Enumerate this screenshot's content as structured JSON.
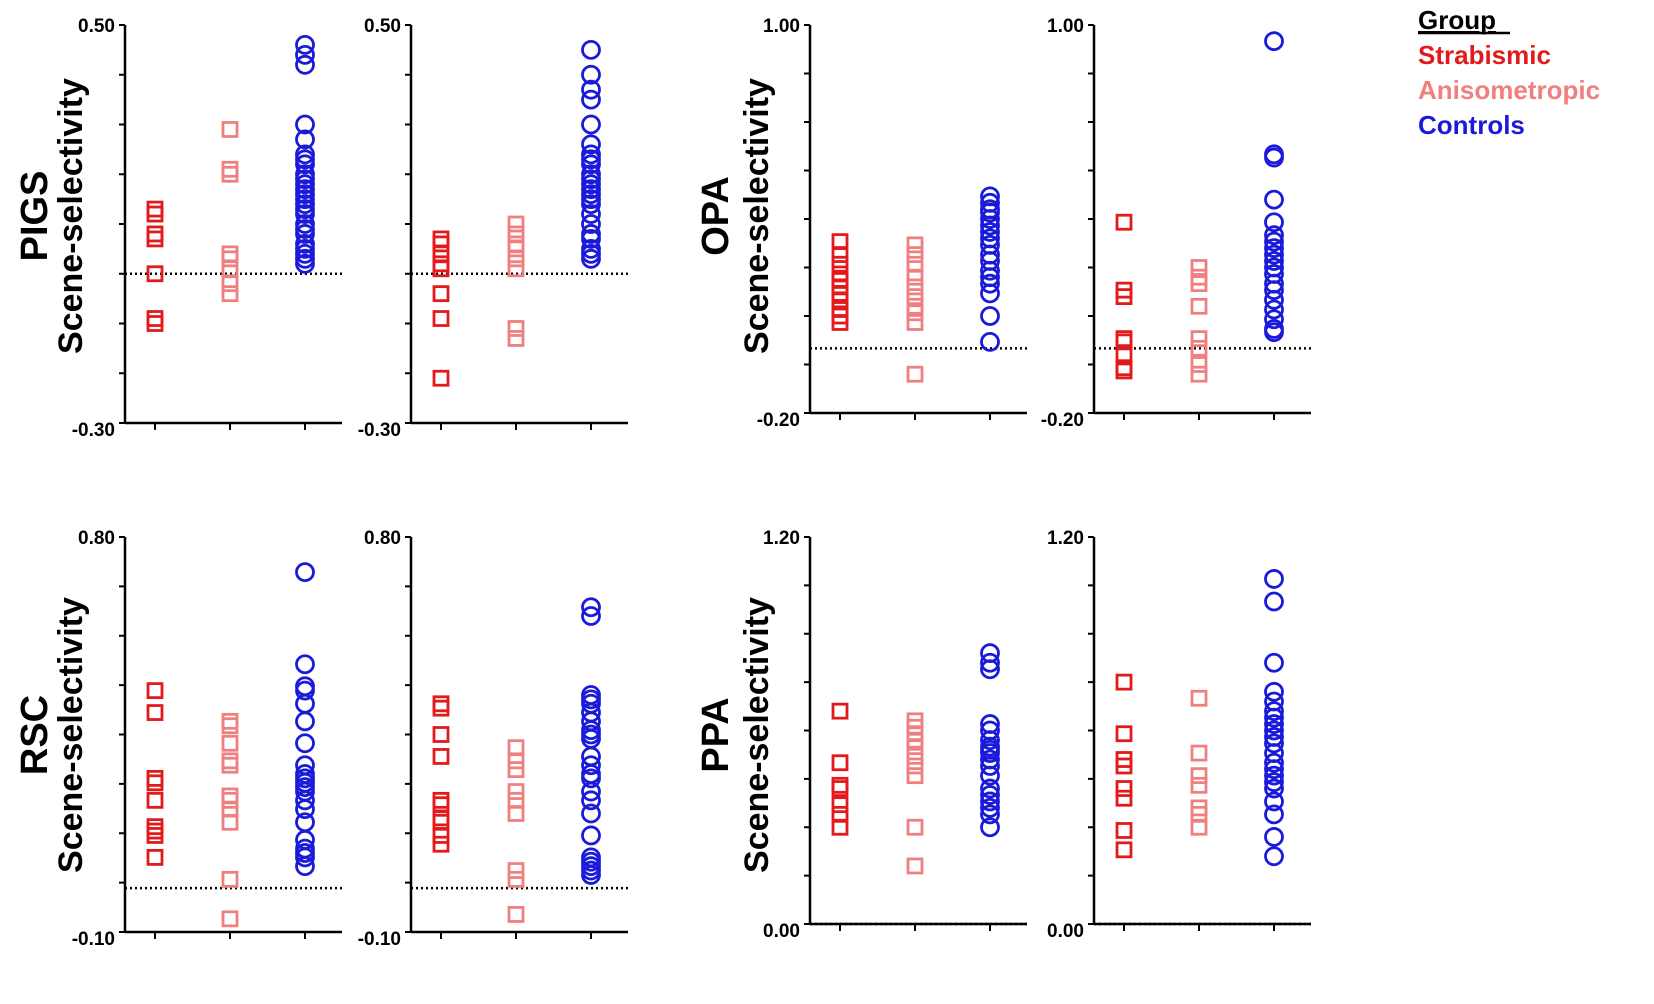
{
  "chart_data": {
    "type": "scatter",
    "groups": [
      "Strabismic",
      "Anisometropic",
      "Controls"
    ],
    "colors": {
      "Strabismic": "#e31a1c",
      "Anisometropic": "#f08080",
      "Controls": "#1a1adb"
    },
    "markers": {
      "Strabismic": "square",
      "Anisometropic": "square",
      "Controls": "circle"
    },
    "legend": {
      "title": "Group",
      "items": [
        "Strabismic",
        "Anisometropic",
        "Controls"
      ],
      "placement": "top-right"
    },
    "ylabel": "Scene-selectivity",
    "regions": [
      {
        "name": "PIGS",
        "ylim": [
          -0.3,
          0.5
        ],
        "tick_labels": [
          "-0.30",
          "0.50"
        ],
        "baseline": 0.0,
        "panels": [
          {
            "Strabismic": [
              0.13,
              0.12,
              0.08,
              0.07,
              0.0,
              -0.09,
              -0.1
            ],
            "Anisometropic": [
              0.29,
              0.21,
              0.2,
              0.04,
              0.03,
              0.01,
              -0.02,
              -0.04
            ],
            "Controls": [
              0.46,
              0.44,
              0.42,
              0.3,
              0.27,
              0.24,
              0.23,
              0.22,
              0.2,
              0.19,
              0.18,
              0.17,
              0.16,
              0.15,
              0.14,
              0.13,
              0.12,
              0.1,
              0.09,
              0.08,
              0.06,
              0.05,
              0.04,
              0.03,
              0.02
            ]
          },
          {
            "Strabismic": [
              0.07,
              0.06,
              0.04,
              0.02,
              0.01,
              -0.04,
              -0.09,
              -0.21
            ],
            "Anisometropic": [
              0.1,
              0.08,
              0.06,
              0.05,
              0.03,
              0.01,
              -0.11,
              -0.13
            ],
            "Controls": [
              0.45,
              0.4,
              0.37,
              0.35,
              0.3,
              0.26,
              0.24,
              0.23,
              0.22,
              0.2,
              0.19,
              0.18,
              0.17,
              0.16,
              0.15,
              0.14,
              0.12,
              0.1,
              0.08,
              0.07,
              0.05,
              0.04,
              0.03
            ]
          }
        ]
      },
      {
        "name": "OPA",
        "ylim": [
          -0.2,
          1.0
        ],
        "tick_labels": [
          "-0.20",
          "1.00"
        ],
        "baseline": 0.0,
        "panels": [
          {
            "Strabismic": [
              0.33,
              0.29,
              0.26,
              0.23,
              0.21,
              0.19,
              0.17,
              0.15,
              0.12,
              0.1,
              0.08
            ],
            "Anisometropic": [
              0.32,
              0.29,
              0.26,
              0.22,
              0.19,
              0.16,
              0.13,
              0.11,
              0.08,
              -0.08
            ],
            "Controls": [
              0.47,
              0.45,
              0.43,
              0.42,
              0.4,
              0.38,
              0.36,
              0.34,
              0.32,
              0.29,
              0.27,
              0.24,
              0.22,
              0.2,
              0.17,
              0.1,
              0.02
            ]
          },
          {
            "Strabismic": [
              0.39,
              0.18,
              0.16,
              0.03,
              0.02,
              -0.02,
              -0.06,
              -0.07
            ],
            "Anisometropic": [
              0.25,
              0.22,
              0.2,
              0.13,
              0.03,
              0.0,
              -0.05,
              -0.08
            ],
            "Controls": [
              0.95,
              0.6,
              0.59,
              0.46,
              0.39,
              0.35,
              0.33,
              0.31,
              0.29,
              0.27,
              0.25,
              0.23,
              0.2,
              0.18,
              0.15,
              0.12,
              0.09,
              0.06,
              0.05
            ]
          }
        ]
      },
      {
        "name": "RSC",
        "ylim": [
          -0.1,
          0.8
        ],
        "tick_labels": [
          "-0.10",
          "0.80"
        ],
        "baseline": 0.0,
        "panels": [
          {
            "Strabismic": [
              0.45,
              0.4,
              0.25,
              0.24,
              0.2,
              0.14,
              0.13,
              0.12,
              0.07
            ],
            "Anisometropic": [
              0.38,
              0.37,
              0.33,
              0.29,
              0.28,
              0.21,
              0.2,
              0.18,
              0.15,
              0.02,
              -0.07
            ],
            "Controls": [
              0.72,
              0.51,
              0.46,
              0.45,
              0.42,
              0.38,
              0.33,
              0.28,
              0.26,
              0.25,
              0.24,
              0.23,
              0.22,
              0.2,
              0.18,
              0.15,
              0.11,
              0.09,
              0.08,
              0.07,
              0.05
            ]
          },
          {
            "Strabismic": [
              0.42,
              0.41,
              0.35,
              0.3,
              0.2,
              0.19,
              0.16,
              0.15,
              0.12,
              0.1
            ],
            "Anisometropic": [
              0.32,
              0.29,
              0.27,
              0.22,
              0.2,
              0.17,
              0.04,
              0.02,
              -0.06
            ],
            "Controls": [
              0.64,
              0.62,
              0.44,
              0.43,
              0.42,
              0.4,
              0.38,
              0.36,
              0.35,
              0.34,
              0.3,
              0.28,
              0.26,
              0.25,
              0.22,
              0.2,
              0.17,
              0.12,
              0.07,
              0.06,
              0.05,
              0.04,
              0.03
            ]
          }
        ]
      },
      {
        "name": "PPA",
        "ylim": [
          0.0,
          1.2
        ],
        "tick_labels": [
          "0.00",
          "1.20"
        ],
        "baseline": 0.0,
        "panels": [
          {
            "Strabismic": [
              0.66,
              0.5,
              0.43,
              0.42,
              0.37,
              0.34,
              0.3
            ],
            "Anisometropic": [
              0.63,
              0.61,
              0.59,
              0.57,
              0.55,
              0.52,
              0.49,
              0.46,
              0.3,
              0.18
            ],
            "Controls": [
              0.84,
              0.81,
              0.79,
              0.62,
              0.6,
              0.57,
              0.55,
              0.54,
              0.53,
              0.51,
              0.49,
              0.46,
              0.42,
              0.4,
              0.38,
              0.36,
              0.34,
              0.3
            ]
          },
          {
            "Strabismic": [
              0.75,
              0.59,
              0.51,
              0.49,
              0.42,
              0.39,
              0.29,
              0.23
            ],
            "Anisometropic": [
              0.7,
              0.53,
              0.46,
              0.43,
              0.36,
              0.34,
              0.3
            ],
            "Controls": [
              1.07,
              1.0,
              0.81,
              0.72,
              0.69,
              0.66,
              0.64,
              0.62,
              0.6,
              0.58,
              0.56,
              0.53,
              0.5,
              0.48,
              0.46,
              0.44,
              0.42,
              0.38,
              0.34,
              0.27,
              0.21
            ]
          }
        ]
      }
    ]
  }
}
